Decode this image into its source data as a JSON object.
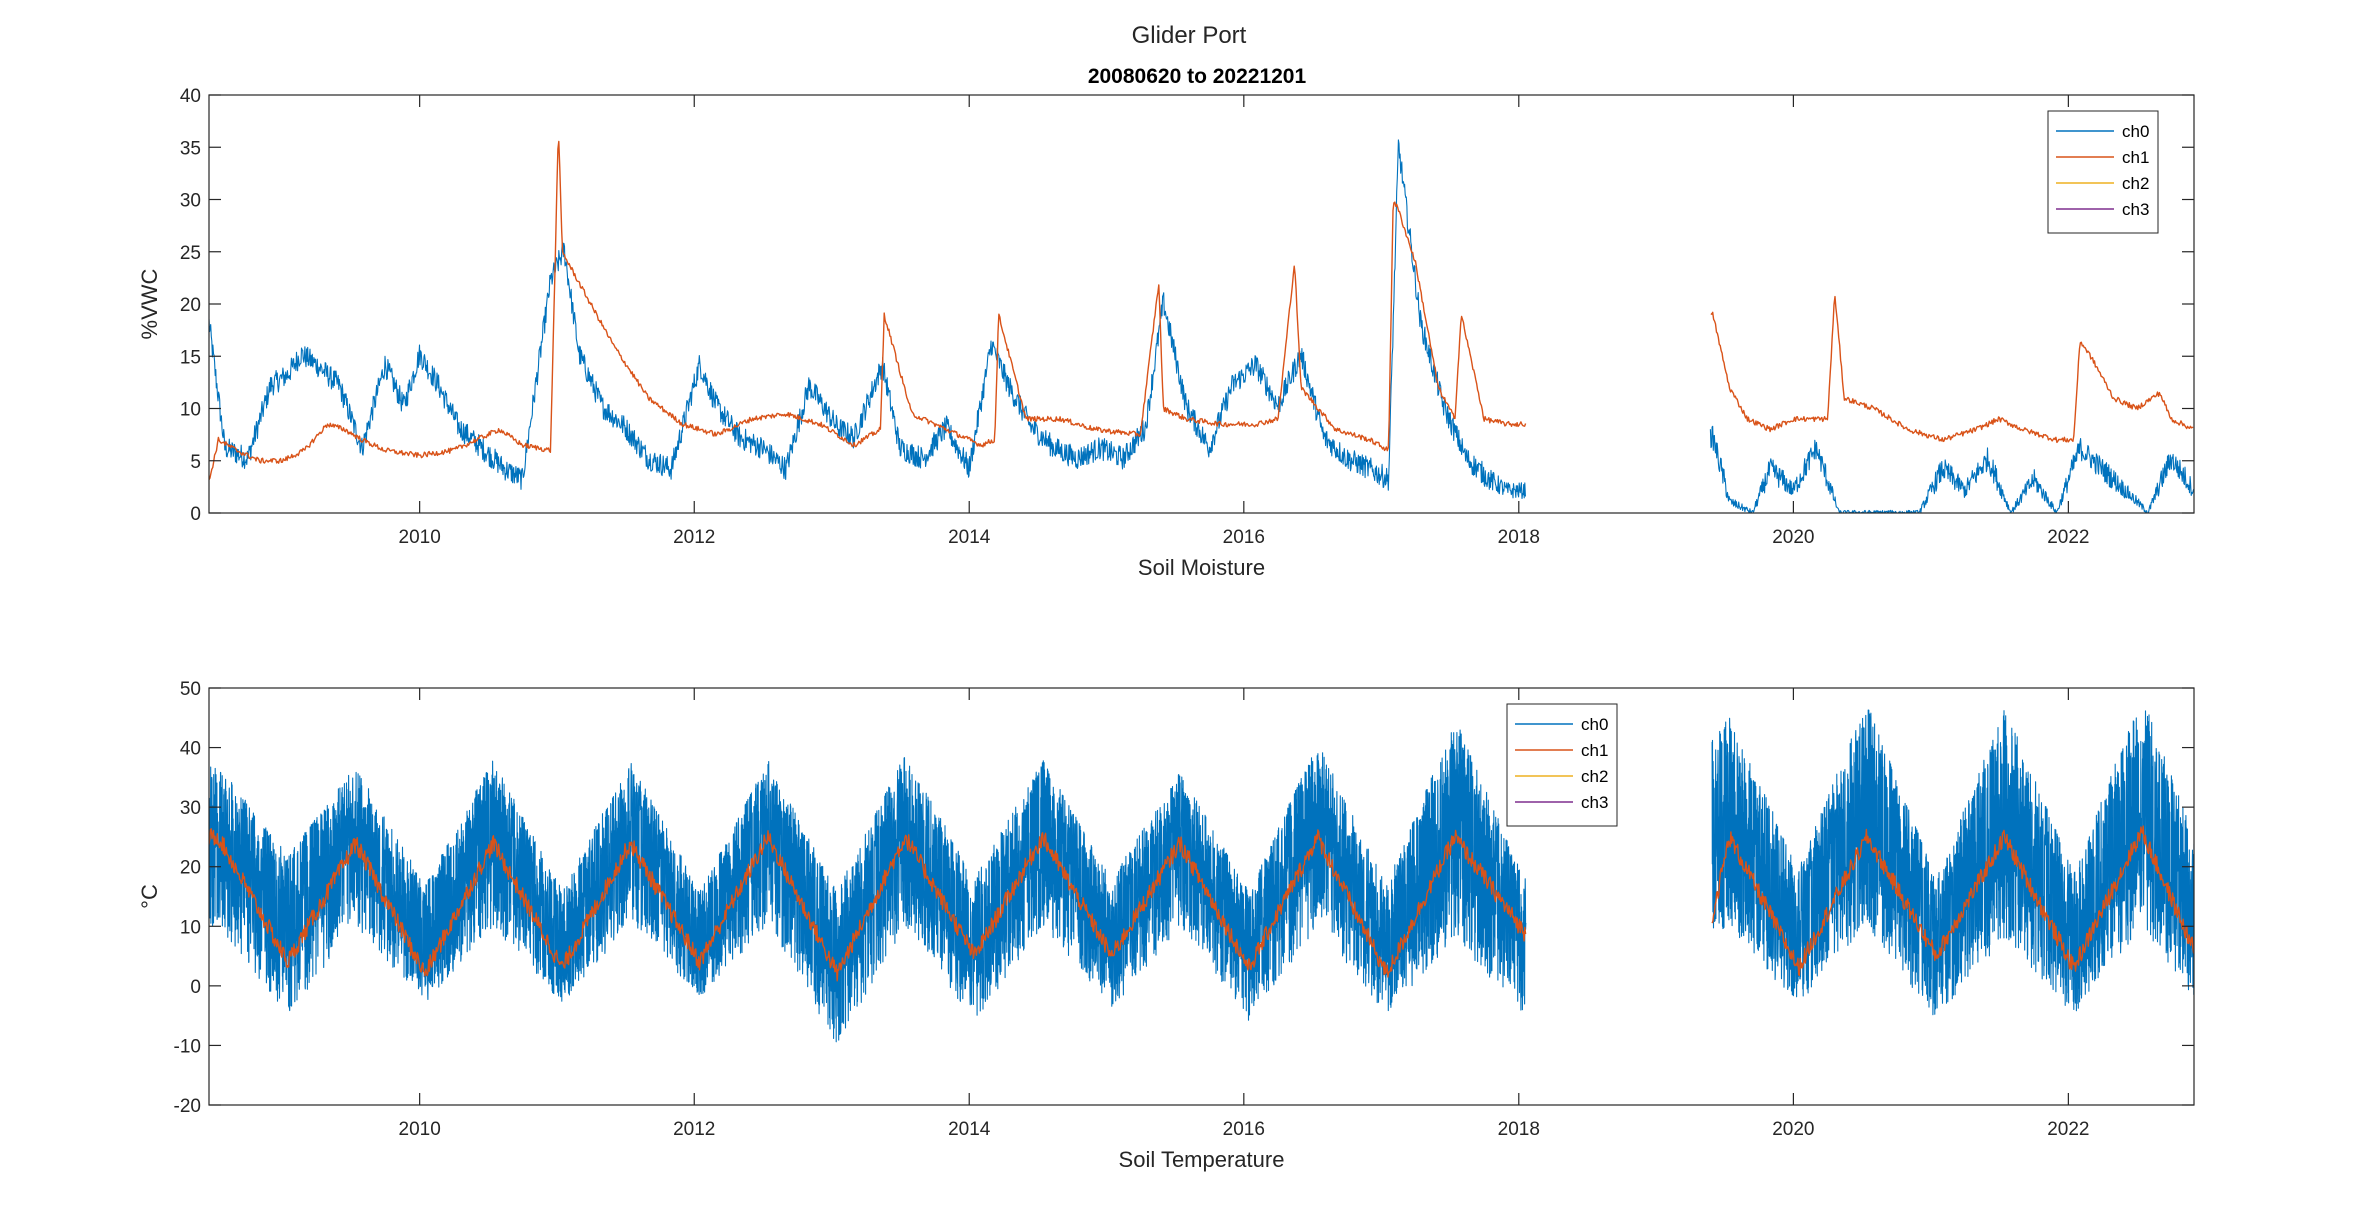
{
  "figure": {
    "title": "Glider Port"
  },
  "colors": {
    "ch0": "#0072BD",
    "ch1": "#D95319",
    "ch2": "#EDB120",
    "ch3": "#7E2F8E",
    "axis": "#262626"
  },
  "chart_data": [
    {
      "type": "line",
      "title": "20080620 to 20221201",
      "xlabel": "Soil Moisture",
      "ylabel": "%VWC",
      "xlim": [
        "2008-06-20",
        "2022-12-01"
      ],
      "ylim": [
        0,
        40
      ],
      "yticks": [
        0,
        5,
        10,
        15,
        20,
        25,
        30,
        35,
        40
      ],
      "xticks": [
        "2010",
        "2012",
        "2014",
        "2016",
        "2018",
        "2020",
        "2022"
      ],
      "grid": false,
      "legend": {
        "position": "top-right",
        "entries": [
          "ch0",
          "ch1",
          "ch2",
          "ch3"
        ]
      },
      "series": [
        {
          "name": "ch0",
          "x": [
            "2008-06-20",
            "2008-08-01",
            "2008-10-01",
            "2008-12-01",
            "2009-01-15",
            "2009-02-20",
            "2009-04-01",
            "2009-06-01",
            "2009-08-01",
            "2009-10-01",
            "2009-11-20",
            "2010-01-01",
            "2010-02-20",
            "2010-04-15",
            "2010-06-15",
            "2010-08-15",
            "2010-10-01",
            "2010-12-15",
            "2011-01-20",
            "2011-03-01",
            "2011-05-01",
            "2011-07-01",
            "2011-09-01",
            "2011-11-01",
            "2012-01-15",
            "2012-03-01",
            "2012-05-01",
            "2012-07-01",
            "2012-09-01",
            "2012-11-01",
            "2013-01-15",
            "2013-03-01",
            "2013-05-15",
            "2013-07-01",
            "2013-09-01",
            "2013-11-01",
            "2014-01-01",
            "2014-03-01",
            "2014-04-15",
            "2014-06-15",
            "2014-08-15",
            "2014-10-15",
            "2014-12-15",
            "2015-02-15",
            "2015-04-15",
            "2015-06-01",
            "2015-08-01",
            "2015-10-01",
            "2015-12-01",
            "2016-02-01",
            "2016-04-01",
            "2016-06-01",
            "2016-08-01",
            "2016-10-01",
            "2016-12-01",
            "2017-01-20",
            "2017-02-15",
            "2017-04-15",
            "2017-06-15",
            "2017-08-15",
            "2017-10-15",
            "2017-12-01",
            "2018-01-15",
            "2019-06-01",
            "2019-07-15",
            "2019-09-15",
            "2019-11-01",
            "2020-01-01",
            "2020-03-01",
            "2020-05-01",
            "2020-07-01",
            "2020-12-01",
            "2021-02-01",
            "2021-04-01",
            "2021-06-01",
            "2021-08-01",
            "2021-10-01",
            "2021-12-01",
            "2022-02-01",
            "2022-04-01",
            "2022-06-01",
            "2022-08-01",
            "2022-10-01",
            "2022-12-01"
          ],
          "y": [
            18,
            6,
            5,
            12,
            13,
            15,
            14,
            12,
            6,
            14,
            10,
            15,
            12,
            8,
            6,
            4,
            3,
            22,
            25,
            15,
            10,
            8,
            5,
            4,
            14,
            10,
            7,
            6,
            4,
            12,
            8,
            7,
            14,
            6,
            5,
            8,
            4,
            16,
            12,
            8,
            6,
            5,
            6,
            5,
            8,
            20,
            10,
            6,
            12,
            14,
            10,
            15,
            7,
            5,
            4,
            3,
            35,
            18,
            10,
            5,
            3,
            2,
            2,
            7,
            1,
            0,
            4,
            2,
            6,
            0,
            0,
            0,
            4,
            2,
            5,
            0,
            3,
            0,
            6,
            4,
            2,
            0,
            5,
            2
          ]
        },
        {
          "name": "ch1",
          "x": [
            "2008-06-20",
            "2008-07-15",
            "2008-09-01",
            "2008-11-01",
            "2009-01-01",
            "2009-03-01",
            "2009-05-01",
            "2009-06-15",
            "2009-08-01",
            "2009-10-01",
            "2010-01-01",
            "2010-04-01",
            "2010-06-01",
            "2010-08-01",
            "2010-10-01",
            "2010-12-15",
            "2011-01-05",
            "2011-01-15",
            "2011-03-01",
            "2011-06-01",
            "2011-09-01",
            "2011-12-01",
            "2012-03-01",
            "2012-06-01",
            "2012-09-01",
            "2012-12-01",
            "2013-03-01",
            "2013-05-10",
            "2013-05-20",
            "2013-08-01",
            "2013-11-01",
            "2014-02-01",
            "2014-03-10",
            "2014-03-20",
            "2014-06-01",
            "2014-09-01",
            "2014-12-01",
            "2015-04-01",
            "2015-05-20",
            "2015-06-01",
            "2015-08-01",
            "2015-11-01",
            "2016-02-01",
            "2016-04-01",
            "2016-05-15",
            "2016-06-01",
            "2016-09-01",
            "2016-12-01",
            "2017-01-20",
            "2017-02-01",
            "2017-02-15",
            "2017-04-01",
            "2017-06-01",
            "2017-07-15",
            "2017-08-01",
            "2017-10-01",
            "2017-12-01",
            "2018-01-15",
            "2019-06-01",
            "2019-07-15",
            "2019-09-01",
            "2019-11-01",
            "2020-01-01",
            "2020-04-01",
            "2020-04-20",
            "2020-05-15",
            "2020-08-01",
            "2020-11-01",
            "2021-02-01",
            "2021-05-01",
            "2021-07-01",
            "2021-09-01",
            "2021-12-01",
            "2022-01-15",
            "2022-02-01",
            "2022-03-01",
            "2022-04-01",
            "2022-05-01",
            "2022-07-01",
            "2022-09-01",
            "2022-10-01",
            "2022-12-01"
          ],
          "y": [
            3,
            7,
            6,
            5,
            5,
            6,
            8.5,
            8,
            7,
            6,
            5.5,
            6,
            7,
            8,
            6.5,
            6,
            37,
            25,
            22,
            16,
            11,
            8.5,
            7.5,
            9,
            9.5,
            8.5,
            6.5,
            8,
            19,
            9.5,
            8,
            6.5,
            7,
            19,
            9,
            9,
            8,
            7.5,
            22,
            10,
            9,
            8.5,
            8.5,
            9,
            24,
            12,
            8,
            7,
            6,
            30,
            29,
            24,
            12,
            9,
            19,
            9,
            8.5,
            8.5,
            19,
            12,
            9,
            8,
            9,
            9,
            21,
            11,
            10,
            8,
            7,
            8,
            9,
            8,
            7,
            7,
            16.5,
            15,
            13,
            11,
            10,
            11.5,
            9,
            8
          ]
        }
      ]
    },
    {
      "type": "line",
      "title": "",
      "xlabel": "Soil Temperature",
      "ylabel": "°C",
      "xlim": [
        "2008-06-20",
        "2022-12-01"
      ],
      "ylim": [
        -20,
        50
      ],
      "yticks": [
        -20,
        -10,
        0,
        10,
        20,
        30,
        40,
        50
      ],
      "xticks": [
        "2010",
        "2012",
        "2014",
        "2016",
        "2018",
        "2020",
        "2022"
      ],
      "grid": false,
      "legend": {
        "position": "top-middle",
        "entries": [
          "ch0",
          "ch1",
          "ch2",
          "ch3"
        ]
      },
      "data_gap": [
        "2018-01-20",
        "2019-05-30"
      ],
      "series": [
        {
          "name": "ch0",
          "seasonal": {
            "peak_day_of_year": 205,
            "data_range": [
              -10,
              48
            ]
          },
          "x": [
            "2008-07-15",
            "2009-01-15",
            "2009-07-15",
            "2010-01-15",
            "2010-07-15",
            "2011-01-15",
            "2011-07-15",
            "2012-01-15",
            "2012-07-15",
            "2013-01-15",
            "2013-07-15",
            "2014-01-15",
            "2014-07-15",
            "2015-01-15",
            "2015-07-15",
            "2016-01-15",
            "2016-07-15",
            "2017-01-15",
            "2017-07-15",
            "2018-01-15",
            "2019-07-15",
            "2020-01-15",
            "2020-07-15",
            "2021-01-15",
            "2021-07-15",
            "2022-01-15",
            "2022-07-15",
            "2022-12-01"
          ],
          "y_center": [
            24,
            8,
            24,
            5,
            25,
            5,
            24,
            5,
            25,
            4,
            25,
            5,
            24,
            6,
            24,
            5,
            25,
            5,
            25,
            7,
            25,
            7,
            27,
            6,
            26,
            6,
            27,
            12
          ],
          "y_high": [
            37,
            22,
            37,
            17,
            38,
            16,
            38,
            16,
            38,
            16,
            39,
            18,
            38,
            18,
            36,
            16,
            41,
            17,
            45,
            18,
            45,
            20,
            48,
            18,
            47,
            19,
            49,
            25
          ],
          "y_low": [
            10,
            -5,
            10,
            -3,
            10,
            -3,
            10,
            -2,
            10,
            -10,
            10,
            -6,
            10,
            -4,
            10,
            -6,
            10,
            -5,
            8,
            -5,
            10,
            -4,
            10,
            -6,
            8,
            -5,
            10,
            -2
          ]
        },
        {
          "name": "ch1",
          "x": [
            "2008-07-15",
            "2009-01-15",
            "2009-07-15",
            "2010-01-15",
            "2010-07-15",
            "2011-01-15",
            "2011-07-15",
            "2012-01-15",
            "2012-07-15",
            "2013-01-15",
            "2013-07-15",
            "2014-01-15",
            "2014-07-15",
            "2015-01-15",
            "2015-07-15",
            "2016-01-15",
            "2016-07-15",
            "2017-01-15",
            "2017-07-15",
            "2018-01-15",
            "2019-06-01",
            "2019-07-15",
            "2020-01-15",
            "2020-07-15",
            "2021-01-15",
            "2021-07-15",
            "2022-01-15",
            "2022-07-15",
            "2022-12-01"
          ],
          "y": [
            25,
            4,
            24,
            2,
            24,
            3,
            24,
            4,
            25,
            2,
            25,
            5,
            25,
            5,
            24,
            3,
            25,
            2,
            25,
            9,
            12,
            25,
            3,
            25,
            5,
            25,
            3,
            26,
            6
          ]
        }
      ]
    }
  ]
}
